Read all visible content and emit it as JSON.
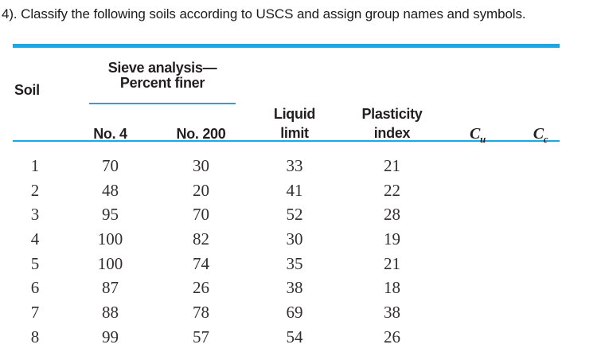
{
  "title": "4). Classify the following soils according to USCS and assign group names and symbols.",
  "colors": {
    "accent_cyan": "#1fa5df",
    "header_text": "#231f20",
    "data_text": "#332f30"
  },
  "table": {
    "group_header": {
      "line1": "Sieve analysis—",
      "line2": "Percent finer"
    },
    "columns": {
      "soil": "Soil",
      "no4": "No. 4",
      "no200": "No. 200",
      "liquid_limit_line1": "Liquid",
      "liquid_limit_line2": "limit",
      "plasticity_index_line1": "Plasticity",
      "plasticity_index_line2": "index",
      "cu_base": "C",
      "cu_sub": "u",
      "cc_base": "C",
      "cc_sub": "c"
    },
    "rows": [
      [
        "1",
        "70",
        "30",
        "33",
        "21",
        "",
        ""
      ],
      [
        "2",
        "48",
        "20",
        "41",
        "22",
        "",
        ""
      ],
      [
        "3",
        "95",
        "70",
        "52",
        "28",
        "",
        ""
      ],
      [
        "4",
        "100",
        "82",
        "30",
        "19",
        "",
        ""
      ],
      [
        "5",
        "100",
        "74",
        "35",
        "21",
        "",
        ""
      ],
      [
        "6",
        "87",
        "26",
        "38",
        "18",
        "",
        ""
      ],
      [
        "7",
        "88",
        "78",
        "69",
        "38",
        "",
        ""
      ],
      [
        "8",
        "99",
        "57",
        "54",
        "26",
        "",
        ""
      ]
    ]
  },
  "chart_data": {
    "type": "table",
    "title": "Sieve analysis—Percent finer",
    "categories": [
      "Soil",
      "No. 4",
      "No. 200",
      "Liquid limit",
      "Plasticity index",
      "Cu",
      "Cc"
    ],
    "series": [
      {
        "name": "No. 4 percent finer",
        "values": [
          70,
          48,
          95,
          100,
          100,
          87,
          88,
          99
        ]
      },
      {
        "name": "No. 200 percent finer",
        "values": [
          30,
          20,
          70,
          82,
          74,
          26,
          78,
          57
        ]
      },
      {
        "name": "Liquid limit",
        "values": [
          33,
          41,
          52,
          30,
          35,
          38,
          69,
          54
        ]
      },
      {
        "name": "Plasticity index",
        "values": [
          21,
          22,
          28,
          19,
          21,
          18,
          38,
          26
        ]
      }
    ],
    "x": [
      1,
      2,
      3,
      4,
      5,
      6,
      7,
      8
    ]
  }
}
